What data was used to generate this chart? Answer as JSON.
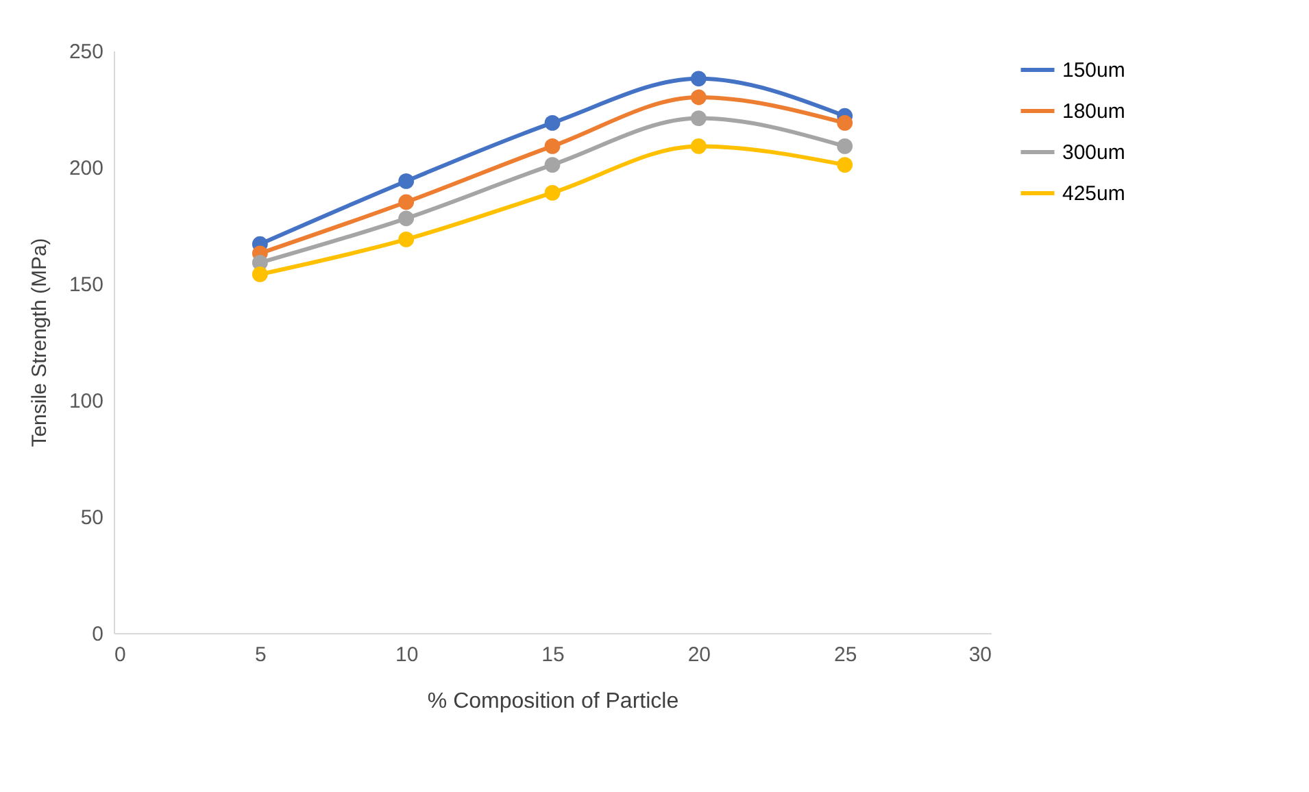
{
  "chart_data": {
    "type": "line",
    "xlabel": "% Composition of Particle",
    "ylabel": "Tensile Strength (MPa)",
    "x": [
      5,
      10,
      15,
      20,
      25
    ],
    "series": [
      {
        "name": "150um",
        "color": "#4472c4",
        "values": [
          167,
          194,
          219,
          238,
          222
        ]
      },
      {
        "name": "180um",
        "color": "#ed7d31",
        "values": [
          163,
          185,
          209,
          230,
          219
        ]
      },
      {
        "name": "300um",
        "color": "#a5a5a5",
        "values": [
          159,
          178,
          201,
          221,
          209
        ]
      },
      {
        "name": "425um",
        "color": "#ffc000",
        "values": [
          154,
          169,
          189,
          209,
          201
        ]
      }
    ],
    "xlim": [
      0,
      30
    ],
    "xticks": [
      0,
      5,
      10,
      15,
      20,
      25,
      30
    ],
    "ylim": [
      0,
      250
    ],
    "yticks": [
      0,
      50,
      100,
      150,
      200,
      250
    ],
    "grid": false,
    "legend": "right",
    "marker": "circle",
    "line_style": "solid"
  }
}
